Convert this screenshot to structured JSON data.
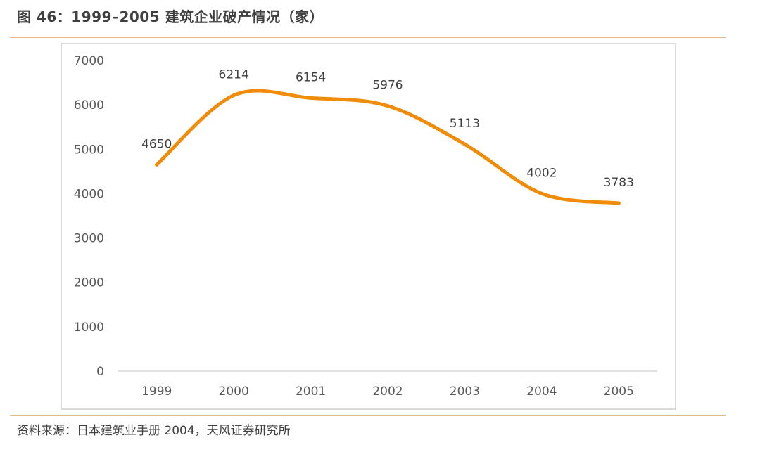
{
  "figure": {
    "title": "图 46：1999–2005 建筑企业破产情况（家）",
    "source": "资料来源：日本建筑业手册 2004，天风证券研究所"
  },
  "chart_data": {
    "type": "line",
    "categories": [
      "1999",
      "2000",
      "2001",
      "2002",
      "2003",
      "2004",
      "2005"
    ],
    "series": [
      {
        "values": [
          4650,
          6214,
          6154,
          5976,
          5113,
          4002,
          3783
        ],
        "color": "#F08C0A",
        "smooth": true
      }
    ],
    "data_labels": [
      "4650",
      "6214",
      "6154",
      "5976",
      "5113",
      "4002",
      "3783"
    ],
    "yticks": [
      "0",
      "1000",
      "2000",
      "3000",
      "4000",
      "5000",
      "6000",
      "7000"
    ],
    "ylim": [
      0,
      7000
    ],
    "grid": false,
    "legend": "none",
    "title": "",
    "xlabel": "",
    "ylabel": ""
  }
}
